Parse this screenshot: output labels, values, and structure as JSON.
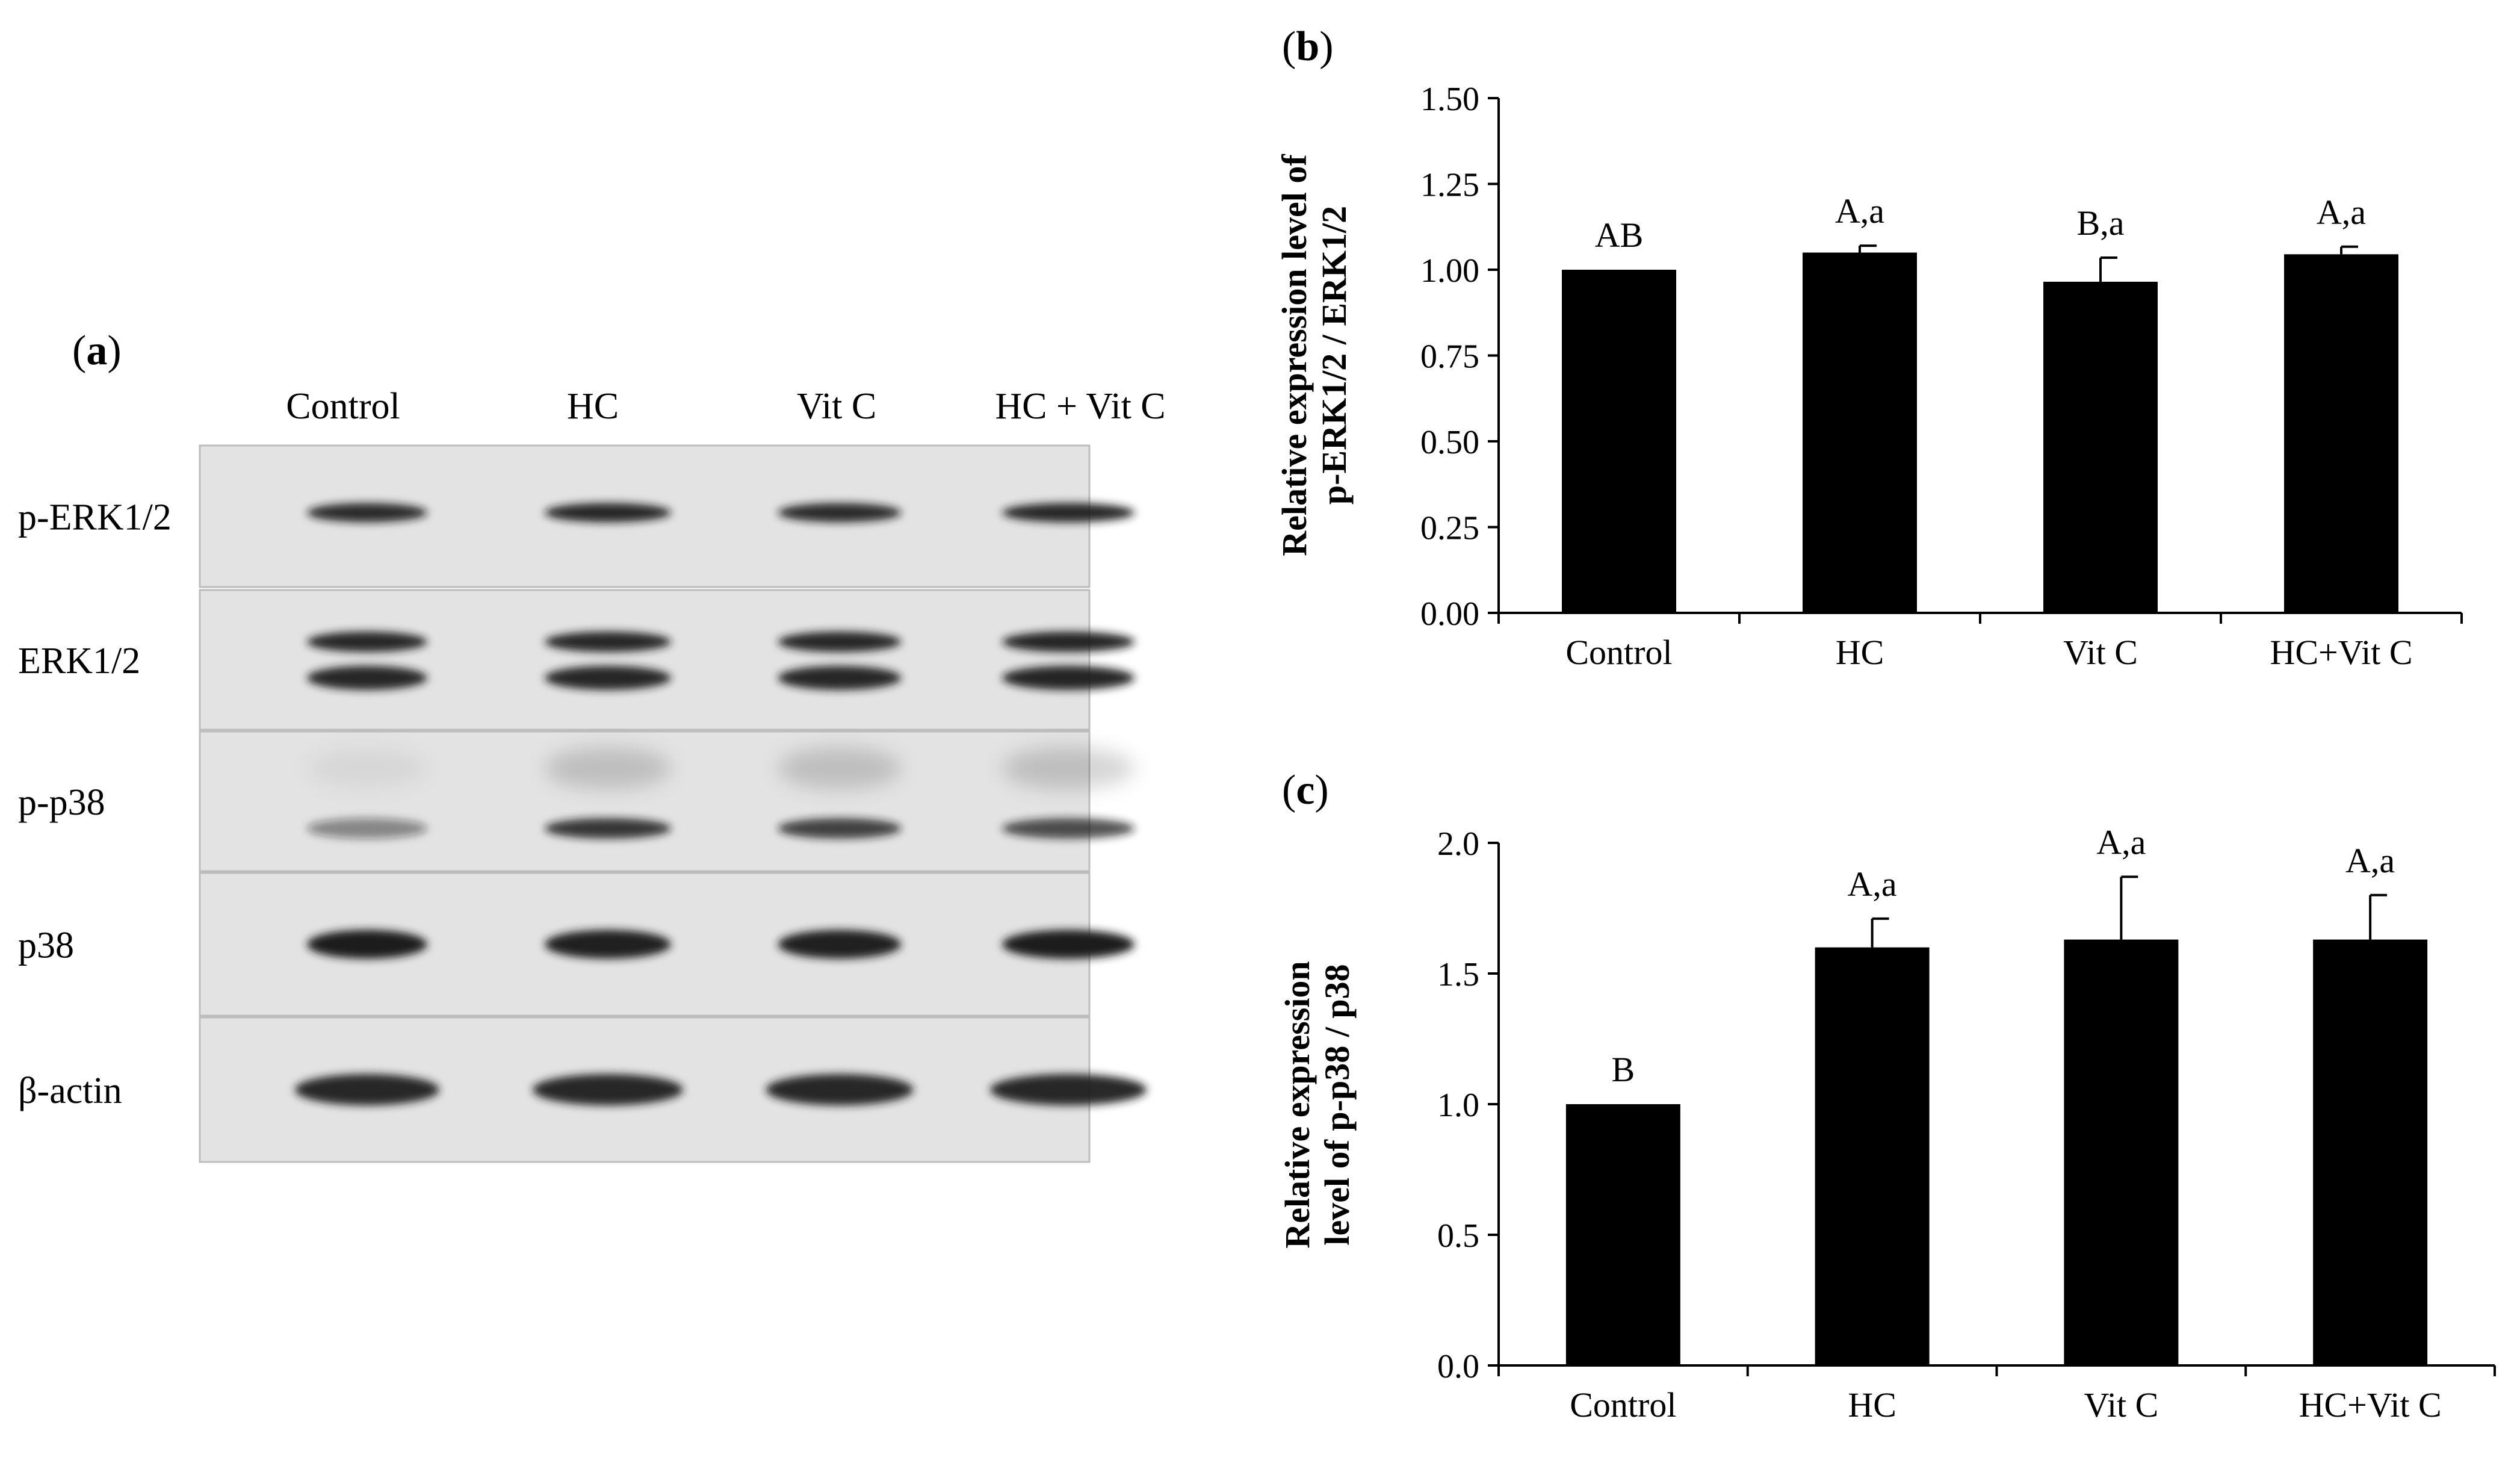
{
  "panel_a": {
    "label_bracket_open": "(",
    "label_letter": "a",
    "label_bracket_close": ")",
    "lanes": [
      "Control",
      "HC",
      "Vit C",
      "HC + Vit C"
    ],
    "rows": [
      {
        "label": "p-ERK1/2",
        "bands": [
          0.9,
          0.92,
          0.9,
          0.95
        ],
        "double": false,
        "faint_upper": false
      },
      {
        "label": "ERK1/2",
        "bands": [
          0.95,
          0.95,
          0.95,
          0.93
        ],
        "double": true,
        "faint_upper": false
      },
      {
        "label": "p-p38",
        "bands": [
          0.45,
          0.85,
          0.8,
          0.75
        ],
        "double": false,
        "faint_upper": true
      },
      {
        "label": "p38",
        "bands": [
          1.0,
          0.98,
          0.98,
          1.0
        ],
        "double": false,
        "faint_upper": false
      },
      {
        "label": "β-actin",
        "bands": [
          0.95,
          0.95,
          0.95,
          0.95
        ],
        "double": false,
        "faint_upper": false
      }
    ],
    "colors": {
      "blot_bg": "#e3e3e3",
      "band": "#1a1a1a",
      "border": "#bdbdbd"
    }
  },
  "chart_data": [
    {
      "panel": "(b)",
      "type": "bar",
      "categories": [
        "Control",
        "HC",
        "Vit C",
        "HC+Vit C"
      ],
      "values": [
        1.0,
        1.05,
        0.965,
        1.045
      ],
      "errors": [
        0.0,
        0.02,
        0.07,
        0.022
      ],
      "annotations": [
        "AB",
        "A,a",
        "B,a",
        "A,a"
      ],
      "ylabel_lines": [
        "Relative expression level of",
        "p-ERK1/2 / ERK1/2"
      ],
      "ylim": [
        0,
        1.5
      ],
      "yticks": [
        "0.00",
        "0.25",
        "0.50",
        "0.75",
        "1.00",
        "1.25",
        "1.50"
      ],
      "grid": false,
      "bar_color": "#000000"
    },
    {
      "panel": "(c)",
      "type": "bar",
      "categories": [
        "Control",
        "HC",
        "Vit C",
        "HC+Vit C"
      ],
      "values": [
        1.0,
        1.6,
        1.63,
        1.63
      ],
      "errors": [
        0.0,
        0.11,
        0.24,
        0.17
      ],
      "annotations": [
        "B",
        "A,a",
        "A,a",
        "A,a"
      ],
      "ylabel_lines": [
        "Relative expression",
        "level of p-p38 / p38"
      ],
      "ylim": [
        0,
        2.0
      ],
      "yticks": [
        "0.0",
        "0.5",
        "1.0",
        "1.5",
        "2.0"
      ],
      "grid": false,
      "bar_color": "#000000"
    }
  ]
}
